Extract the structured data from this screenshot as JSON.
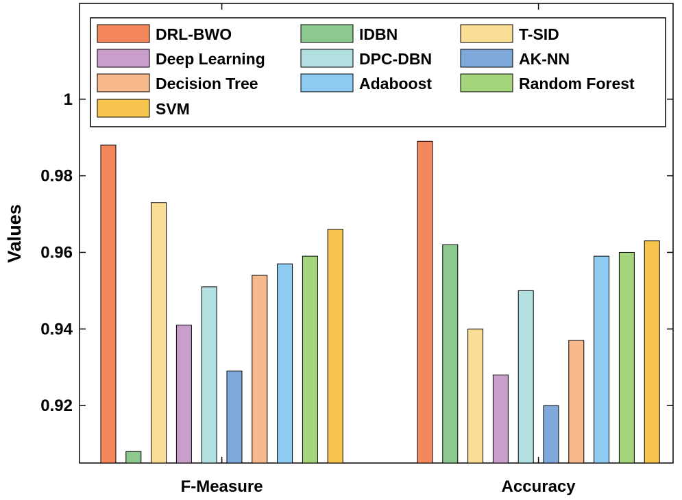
{
  "chart_data": {
    "type": "bar",
    "title": "",
    "xlabel": "",
    "ylabel": "Values",
    "ylim": [
      0.905,
      1.025
    ],
    "yticks": [
      0.92,
      0.94,
      0.96,
      0.98,
      1
    ],
    "ytick_labels": [
      "0.92",
      "0.94",
      "0.96",
      "0.98",
      "1"
    ],
    "categories": [
      "F-Measure",
      "Accuracy"
    ],
    "grid": false,
    "legend_position": "top",
    "series": [
      {
        "name": "DRL-BWO",
        "color": "#F4875B",
        "values": [
          0.988,
          0.989
        ]
      },
      {
        "name": "IDBN",
        "color": "#8DC88E",
        "values": [
          0.908,
          0.962
        ]
      },
      {
        "name": "T-SID",
        "color": "#FBDE95",
        "values": [
          0.973,
          0.94
        ]
      },
      {
        "name": "Deep Learning",
        "color": "#C99ECB",
        "values": [
          0.941,
          0.928
        ]
      },
      {
        "name": "DPC-DBN",
        "color": "#B2E0E1",
        "values": [
          0.951,
          0.95
        ]
      },
      {
        "name": "AK-NN",
        "color": "#7EA7DA",
        "values": [
          0.929,
          0.92
        ]
      },
      {
        "name": "Decision Tree",
        "color": "#F8B98C",
        "values": [
          0.954,
          0.937
        ]
      },
      {
        "name": "Adaboost",
        "color": "#8ECBF0",
        "values": [
          0.957,
          0.959
        ]
      },
      {
        "name": "Random Forest",
        "color": "#A4D47B",
        "values": [
          0.959,
          0.96
        ]
      },
      {
        "name": "SVM",
        "color": "#F8C54E",
        "values": [
          0.966,
          0.963
        ]
      }
    ]
  }
}
